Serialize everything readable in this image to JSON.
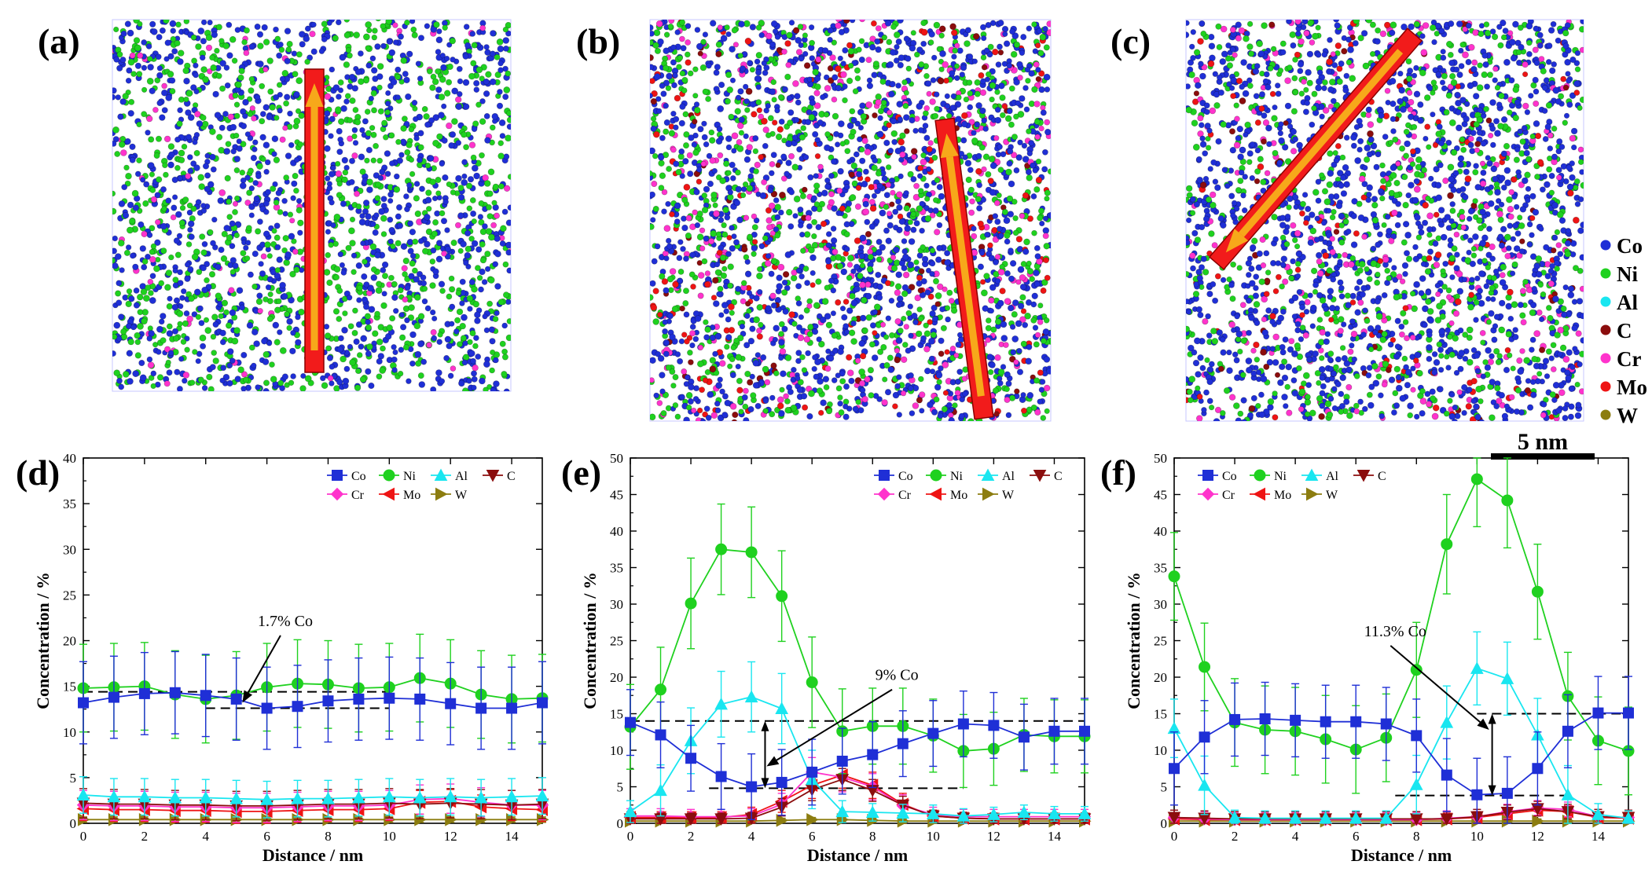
{
  "panel_labels": [
    "(a)",
    "(b)",
    "(c)",
    "(d)",
    "(e)",
    "(f)"
  ],
  "colors": {
    "Co": "#1f2fd6",
    "Ni": "#1fd11f",
    "Al": "#19e6f0",
    "C": "#8b0d0d",
    "Cr": "#ff33cc",
    "Mo": "#ee1414",
    "W": "#8c7d10",
    "arrow_fill": "#f21b1b",
    "arrow_core": "#f7a81a"
  },
  "atom_legend": {
    "items": [
      "Co",
      "Ni",
      "Al",
      "C",
      "Cr",
      "Mo",
      "W"
    ]
  },
  "scale_bar": {
    "label": "5 nm"
  },
  "atom_panels": [
    {
      "label": "(a)",
      "composition": {
        "Co": 55,
        "Ni": 40,
        "Cr": 5
      },
      "arrow_direction": "vertical, pointing up"
    },
    {
      "label": "(b)",
      "composition": {
        "Co": 48,
        "Ni": 30,
        "Cr": 12,
        "Mo": 6,
        "C": 4
      },
      "arrow_direction": "near-vertical, pointing up"
    },
    {
      "label": "(c)",
      "composition": {
        "Co": 58,
        "Ni": 26,
        "Cr": 10,
        "Mo": 4,
        "C": 2
      },
      "arrow_direction": "diagonal, pointing to lower-left"
    }
  ],
  "chart_data": [
    {
      "label": "(d)",
      "type": "line",
      "xlabel": "Distance / nm",
      "ylabel": "Concentration / %",
      "xlim": [
        0,
        15
      ],
      "ylim": [
        0,
        40
      ],
      "xticks": [
        0,
        2,
        4,
        6,
        8,
        10,
        12,
        14
      ],
      "yticks": [
        0,
        5,
        10,
        15,
        20,
        25,
        30,
        35,
        40
      ],
      "x": [
        0,
        1,
        2,
        3,
        4,
        5,
        6,
        7,
        8,
        9,
        10,
        11,
        12,
        13,
        14,
        15
      ],
      "series": [
        {
          "name": "Co",
          "marker": "square",
          "values": [
            13.2,
            13.8,
            14.2,
            14.3,
            14.0,
            13.6,
            12.6,
            12.8,
            13.4,
            13.6,
            13.7,
            13.6,
            13.1,
            12.6,
            12.6,
            13.2
          ],
          "errors": [
            4.5,
            4.5,
            4.5,
            4.5,
            4.5,
            4.5,
            4.5,
            4.5,
            4.5,
            4.5,
            4.5,
            4.5,
            4.5,
            4.5,
            4.5,
            4.5
          ]
        },
        {
          "name": "Ni",
          "marker": "circle",
          "values": [
            14.8,
            14.9,
            15.0,
            14.1,
            13.6,
            14.0,
            14.9,
            15.3,
            15.2,
            14.8,
            14.9,
            15.9,
            15.3,
            14.1,
            13.6,
            13.7
          ],
          "errors": [
            4.8,
            4.8,
            4.8,
            4.8,
            4.8,
            4.8,
            4.8,
            4.8,
            4.8,
            4.8,
            4.8,
            4.8,
            4.8,
            4.8,
            4.8,
            4.8
          ]
        },
        {
          "name": "Al",
          "marker": "triangle-up",
          "values": [
            3.1,
            2.9,
            2.9,
            2.8,
            2.8,
            2.7,
            2.6,
            2.7,
            2.7,
            2.8,
            2.9,
            2.8,
            2.9,
            2.8,
            2.9,
            3.0
          ],
          "errors": [
            2.0,
            2.0,
            2.0,
            2.0,
            2.0,
            2.0,
            2.0,
            2.0,
            2.0,
            2.0,
            2.0,
            2.0,
            2.0,
            2.0,
            2.0,
            2.0
          ]
        },
        {
          "name": "C",
          "marker": "triangle-down",
          "values": [
            2.2,
            2.1,
            2.1,
            2.0,
            2.0,
            1.9,
            1.9,
            2.0,
            2.1,
            2.1,
            2.2,
            2.1,
            2.2,
            2.1,
            2.0,
            2.1
          ],
          "errors": [
            1.6,
            1.6,
            1.6,
            1.6,
            1.6,
            1.6,
            1.6,
            1.6,
            1.6,
            1.6,
            1.6,
            1.6,
            1.6,
            1.6,
            1.6,
            1.6
          ]
        },
        {
          "name": "Cr",
          "marker": "diamond",
          "values": [
            2.0,
            1.9,
            1.9,
            1.8,
            1.8,
            1.7,
            1.7,
            1.8,
            1.9,
            1.9,
            2.0,
            2.6,
            2.7,
            2.3,
            2.0,
            2.0
          ],
          "errors": [
            1.6,
            1.6,
            1.6,
            1.6,
            1.6,
            1.6,
            1.6,
            1.6,
            1.6,
            1.6,
            1.6,
            1.6,
            1.6,
            1.6,
            1.6,
            1.6
          ]
        },
        {
          "name": "Mo",
          "marker": "triangle-left",
          "values": [
            1.6,
            1.5,
            1.5,
            1.4,
            1.4,
            1.3,
            1.3,
            1.4,
            1.5,
            1.5,
            1.6,
            2.3,
            2.4,
            1.8,
            1.6,
            1.5
          ],
          "errors": [
            1.3,
            1.3,
            1.3,
            1.3,
            1.3,
            1.3,
            1.3,
            1.3,
            1.3,
            1.3,
            1.3,
            1.3,
            1.3,
            1.3,
            1.3,
            1.3
          ]
        },
        {
          "name": "W",
          "marker": "triangle-right",
          "values": [
            0.4,
            0.4,
            0.4,
            0.4,
            0.4,
            0.4,
            0.4,
            0.4,
            0.4,
            0.4,
            0.4,
            0.4,
            0.4,
            0.4,
            0.4,
            0.4
          ],
          "errors": [
            0.3,
            0.3,
            0.3,
            0.3,
            0.3,
            0.3,
            0.3,
            0.3,
            0.3,
            0.3,
            0.3,
            0.3,
            0.3,
            0.3,
            0.3,
            0.3
          ]
        }
      ],
      "reference_lines": [
        {
          "y": 14.4,
          "x0": 0,
          "x1": 10
        },
        {
          "y": 12.6,
          "x0": 4,
          "x1": 10
        }
      ],
      "annotation": {
        "text": "1.7% Co",
        "text_x": 6.6,
        "text_y": 21.6,
        "target_x": 5.2,
        "target_y": 13.2,
        "style": "arrow"
      }
    },
    {
      "label": "(e)",
      "type": "line",
      "xlabel": "Distance / nm",
      "ylabel": "Concentration / %",
      "xlim": [
        0,
        15
      ],
      "ylim": [
        0,
        50
      ],
      "xticks": [
        0,
        2,
        4,
        6,
        8,
        10,
        12,
        14
      ],
      "yticks": [
        0,
        5,
        10,
        15,
        20,
        25,
        30,
        35,
        40,
        45,
        50
      ],
      "x": [
        0,
        1,
        2,
        3,
        4,
        5,
        6,
        7,
        8,
        9,
        10,
        11,
        12,
        13,
        14,
        15
      ],
      "series": [
        {
          "name": "Co",
          "marker": "square",
          "values": [
            13.8,
            12.1,
            8.9,
            6.4,
            5.0,
            5.6,
            7.0,
            8.5,
            9.4,
            10.9,
            12.3,
            13.6,
            13.4,
            11.8,
            12.6,
            12.6
          ],
          "errors": [
            4.5,
            4.5,
            4.5,
            4.5,
            4.5,
            4.5,
            4.5,
            4.5,
            4.5,
            4.5,
            4.5,
            4.5,
            4.5,
            4.5,
            4.5,
            4.5
          ]
        },
        {
          "name": "Ni",
          "marker": "circle",
          "values": [
            13.2,
            18.3,
            30.1,
            37.5,
            37.1,
            31.1,
            19.3,
            12.6,
            13.3,
            13.3,
            12.0,
            9.9,
            10.2,
            12.1,
            11.9,
            11.9
          ],
          "errors": [
            5.8,
            5.8,
            6.2,
            6.2,
            6.2,
            6.2,
            6.2,
            5.8,
            5.2,
            5.2,
            5.0,
            5.0,
            5.0,
            5.0,
            5.0,
            5.0
          ]
        },
        {
          "name": "Al",
          "marker": "triangle-up",
          "values": [
            1.6,
            4.5,
            11.3,
            16.3,
            17.3,
            15.7,
            6.0,
            1.6,
            1.5,
            1.4,
            1.3,
            1.0,
            1.2,
            1.5,
            1.3,
            1.3
          ],
          "errors": [
            1.5,
            3.5,
            4.5,
            4.5,
            4.8,
            4.8,
            4.0,
            1.5,
            1.2,
            1.2,
            1.2,
            1.0,
            1.0,
            1.0,
            1.0,
            1.0
          ]
        },
        {
          "name": "C",
          "marker": "triangle-down",
          "values": [
            0.6,
            0.6,
            0.6,
            0.6,
            0.7,
            2.2,
            4.6,
            6.0,
            4.5,
            2.5,
            1.0,
            0.7,
            0.6,
            0.6,
            0.6,
            0.6
          ],
          "errors": [
            0.8,
            0.8,
            0.8,
            0.8,
            0.8,
            1.2,
            1.5,
            1.5,
            1.5,
            1.2,
            0.8,
            0.8,
            0.8,
            0.8,
            0.8,
            0.8
          ]
        },
        {
          "name": "Cr",
          "marker": "diamond",
          "values": [
            1.0,
            1.0,
            0.9,
            0.9,
            1.0,
            2.6,
            7.0,
            6.3,
            5.0,
            2.4,
            1.2,
            0.9,
            0.9,
            0.9,
            0.9,
            0.9
          ],
          "errors": [
            1.0,
            1.0,
            1.0,
            1.0,
            1.0,
            1.5,
            2.0,
            2.0,
            1.8,
            1.5,
            1.0,
            1.0,
            1.0,
            1.0,
            1.0,
            1.0
          ]
        },
        {
          "name": "Mo",
          "marker": "triangle-left",
          "values": [
            0.8,
            0.8,
            0.8,
            0.8,
            1.2,
            3.0,
            5.2,
            6.6,
            5.2,
            2.6,
            1.0,
            0.7,
            0.6,
            0.6,
            0.6,
            0.6
          ],
          "errors": [
            0.8,
            0.8,
            0.8,
            0.8,
            1.0,
            1.5,
            1.8,
            1.8,
            1.8,
            1.5,
            0.8,
            0.8,
            0.8,
            0.8,
            0.8,
            0.8
          ]
        },
        {
          "name": "W",
          "marker": "triangle-right",
          "values": [
            0.3,
            0.3,
            0.3,
            0.3,
            0.3,
            0.4,
            0.5,
            0.5,
            0.4,
            0.3,
            0.3,
            0.3,
            0.3,
            0.3,
            0.3,
            0.3
          ],
          "errors": [
            0.3,
            0.3,
            0.3,
            0.3,
            0.3,
            0.3,
            0.3,
            0.3,
            0.3,
            0.3,
            0.3,
            0.3,
            0.3,
            0.3,
            0.3,
            0.3
          ]
        }
      ],
      "reference_lines": [
        {
          "y": 14.0,
          "x0": 0,
          "x1": 15
        },
        {
          "y": 4.8,
          "x0": 2.6,
          "x1": 11
        }
      ],
      "double_arrow": {
        "x": 4.45,
        "y0": 4.8,
        "y1": 14.0
      },
      "annotation": {
        "text": "9% Co",
        "text_x": 8.8,
        "text_y": 19.6,
        "target_x": 4.5,
        "target_y": 7.8,
        "style": "arrow"
      }
    },
    {
      "label": "(f)",
      "type": "line",
      "xlabel": "Distance / nm",
      "ylabel": "Concentration / %",
      "xlim": [
        0,
        15
      ],
      "ylim": [
        0,
        50
      ],
      "xticks": [
        0,
        2,
        4,
        6,
        8,
        10,
        12,
        14
      ],
      "yticks": [
        0,
        5,
        10,
        15,
        20,
        25,
        30,
        35,
        40,
        45,
        50
      ],
      "x": [
        0,
        1,
        2,
        3,
        4,
        5,
        6,
        7,
        8,
        9,
        10,
        11,
        12,
        13,
        14,
        15
      ],
      "series": [
        {
          "name": "Co",
          "marker": "square",
          "values": [
            7.5,
            11.8,
            14.2,
            14.3,
            14.1,
            13.9,
            13.9,
            13.6,
            12.0,
            6.6,
            3.9,
            4.1,
            7.5,
            12.6,
            15.1,
            15.1
          ],
          "errors": [
            5.0,
            5.0,
            5.0,
            5.0,
            5.0,
            5.0,
            5.0,
            5.0,
            5.0,
            5.0,
            5.0,
            5.0,
            5.0,
            5.0,
            5.0,
            5.0
          ]
        },
        {
          "name": "Ni",
          "marker": "circle",
          "values": [
            33.8,
            21.4,
            13.8,
            12.8,
            12.6,
            11.5,
            10.1,
            11.7,
            21.0,
            38.2,
            47.1,
            44.2,
            31.7,
            17.4,
            11.3,
            9.9
          ],
          "errors": [
            6.0,
            6.0,
            6.0,
            6.0,
            6.0,
            6.0,
            6.0,
            6.0,
            6.5,
            6.8,
            6.5,
            6.5,
            6.5,
            6.0,
            6.0,
            6.0
          ]
        },
        {
          "name": "Al",
          "marker": "triangle-up",
          "values": [
            13.0,
            5.2,
            0.8,
            0.7,
            0.7,
            0.7,
            0.7,
            0.7,
            5.3,
            13.8,
            21.2,
            19.8,
            12.1,
            3.9,
            1.2,
            0.7
          ],
          "errors": [
            4.0,
            4.0,
            1.0,
            1.0,
            1.0,
            1.0,
            1.0,
            1.0,
            4.0,
            5.0,
            5.0,
            5.0,
            5.0,
            4.0,
            1.5,
            1.0
          ]
        },
        {
          "name": "C",
          "marker": "triangle-down",
          "values": [
            0.8,
            0.7,
            0.6,
            0.6,
            0.6,
            0.6,
            0.6,
            0.6,
            0.6,
            0.6,
            0.9,
            1.5,
            2.0,
            1.6,
            0.9,
            0.8
          ],
          "errors": [
            1.0,
            1.0,
            1.0,
            1.0,
            1.0,
            1.0,
            1.0,
            1.0,
            1.0,
            1.0,
            1.0,
            1.0,
            1.0,
            1.0,
            1.0,
            1.0
          ]
        },
        {
          "name": "Cr",
          "marker": "diamond",
          "values": [
            0.8,
            0.6,
            0.5,
            0.5,
            0.5,
            0.5,
            0.5,
            0.5,
            0.5,
            0.7,
            0.9,
            1.6,
            2.1,
            1.9,
            0.9,
            0.8
          ],
          "errors": [
            1.0,
            1.0,
            1.0,
            1.0,
            1.0,
            1.0,
            1.0,
            1.0,
            1.0,
            1.0,
            1.0,
            1.0,
            1.0,
            1.0,
            1.0,
            1.0
          ]
        },
        {
          "name": "Mo",
          "marker": "triangle-left",
          "values": [
            0.6,
            0.5,
            0.5,
            0.5,
            0.5,
            0.5,
            0.5,
            0.5,
            0.5,
            0.6,
            0.8,
            1.3,
            1.8,
            1.6,
            0.8,
            0.7
          ],
          "errors": [
            0.8,
            0.8,
            0.8,
            0.8,
            0.8,
            0.8,
            0.8,
            0.8,
            0.8,
            0.8,
            0.8,
            0.8,
            0.8,
            0.8,
            0.8,
            0.8
          ]
        },
        {
          "name": "W",
          "marker": "triangle-right",
          "values": [
            0.3,
            0.3,
            0.3,
            0.3,
            0.3,
            0.3,
            0.3,
            0.3,
            0.3,
            0.3,
            0.3,
            0.3,
            0.3,
            0.3,
            0.3,
            0.3
          ],
          "errors": [
            0.3,
            0.3,
            0.3,
            0.3,
            0.3,
            0.3,
            0.3,
            0.3,
            0.3,
            0.3,
            0.3,
            0.3,
            0.3,
            0.3,
            0.3,
            0.3
          ]
        }
      ],
      "reference_lines": [
        {
          "y": 15.0,
          "x0": 10,
          "x1": 15
        },
        {
          "y": 3.8,
          "x0": 7.3,
          "x1": 13
        }
      ],
      "double_arrow": {
        "x": 10.5,
        "y0": 3.8,
        "y1": 15.0
      },
      "annotation": {
        "text": "11.3% Co",
        "text_x": 7.3,
        "text_y": 25.6,
        "target_x": 10.4,
        "target_y": 12.8,
        "style": "arrow"
      }
    }
  ]
}
